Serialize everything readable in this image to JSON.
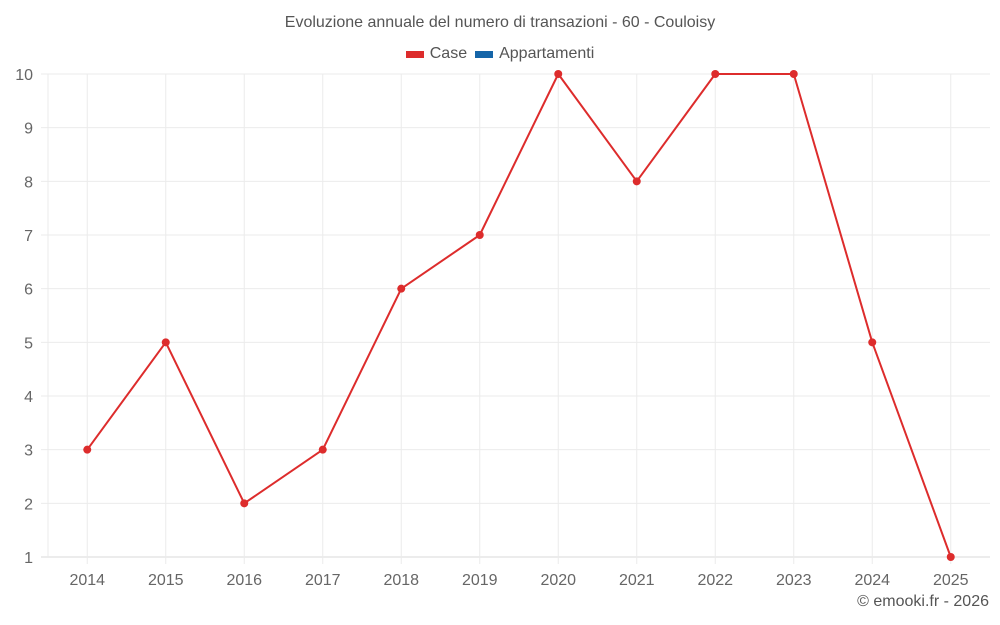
{
  "title": "Evoluzione annuale del numero di transazioni - 60 - Couloisy",
  "legend": [
    {
      "label": "Case",
      "color": "#dd2c2c"
    },
    {
      "label": "Appartamenti",
      "color": "#1565a8"
    }
  ],
  "credit": "© emooki.fr - 2026",
  "colors": {
    "grid": "#ebebeb",
    "axis": "#d8d8d8",
    "line": "#dd2c2c"
  },
  "chart_data": {
    "type": "line",
    "title": "Evoluzione annuale del numero di transazioni - 60 - Couloisy",
    "xlabel": "",
    "ylabel": "",
    "categories": [
      "2014",
      "2015",
      "2016",
      "2017",
      "2018",
      "2019",
      "2020",
      "2021",
      "2022",
      "2023",
      "2024",
      "2025"
    ],
    "series": [
      {
        "name": "Case",
        "color": "#dd2c2c",
        "values": [
          3,
          5,
          2,
          3,
          6,
          7,
          10,
          8,
          10,
          10,
          5,
          1
        ]
      },
      {
        "name": "Appartamenti",
        "color": "#1565a8",
        "values": []
      }
    ],
    "ylim": [
      1,
      10
    ],
    "yticks": [
      1,
      2,
      3,
      4,
      5,
      6,
      7,
      8,
      9,
      10
    ],
    "grid": true,
    "legend_position": "top"
  }
}
